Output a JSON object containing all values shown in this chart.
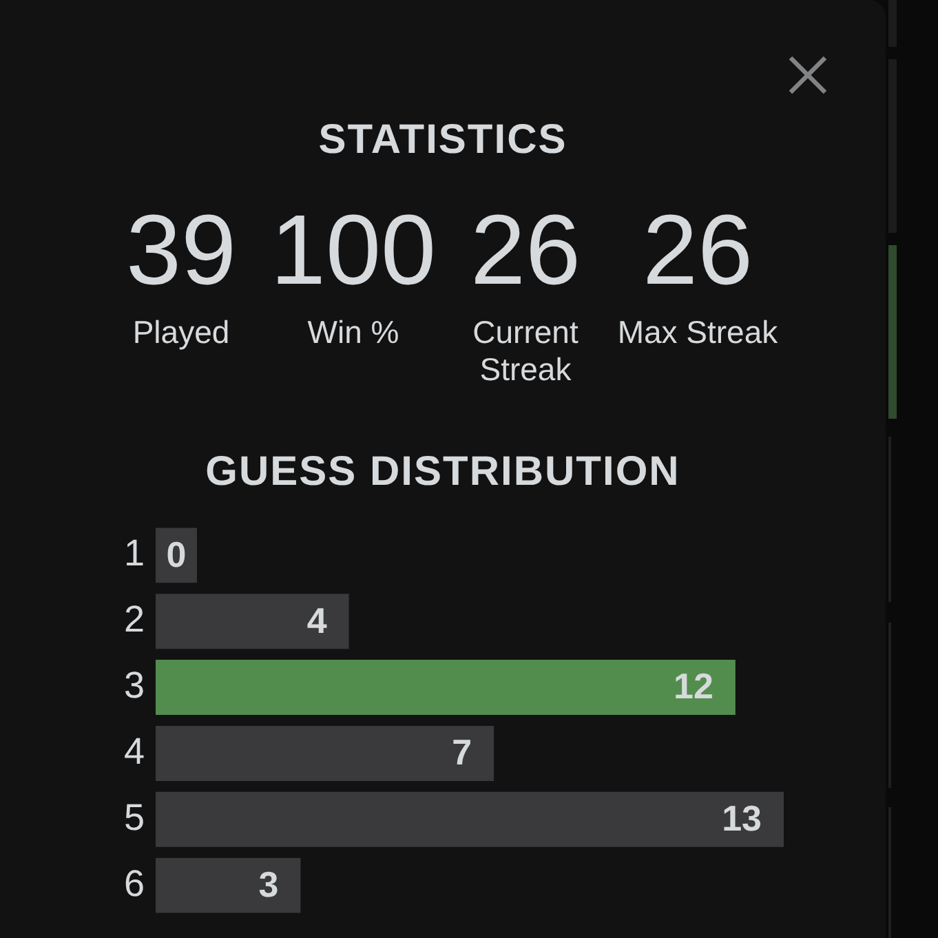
{
  "chart_data": [
    {
      "type": "other",
      "title": "STATISTICS",
      "categories": [
        "Played",
        "Win %",
        "Current Streak",
        "Max Streak"
      ],
      "values": [
        39,
        100,
        26,
        26
      ],
      "data_labels": true
    },
    {
      "type": "bar",
      "title": "GUESS DISTRIBUTION",
      "orientation": "horizontal",
      "categories": [
        "1",
        "2",
        "3",
        "4",
        "5",
        "6"
      ],
      "values": [
        0,
        4,
        12,
        7,
        13,
        3
      ],
      "colors": [
        "#3a3a3c",
        "#3a3a3c",
        "#538d4e",
        "#3a3a3c",
        "#3a3a3c",
        "#3a3a3c"
      ],
      "data_labels": true,
      "tick_labels": "y"
    }
  ]
}
